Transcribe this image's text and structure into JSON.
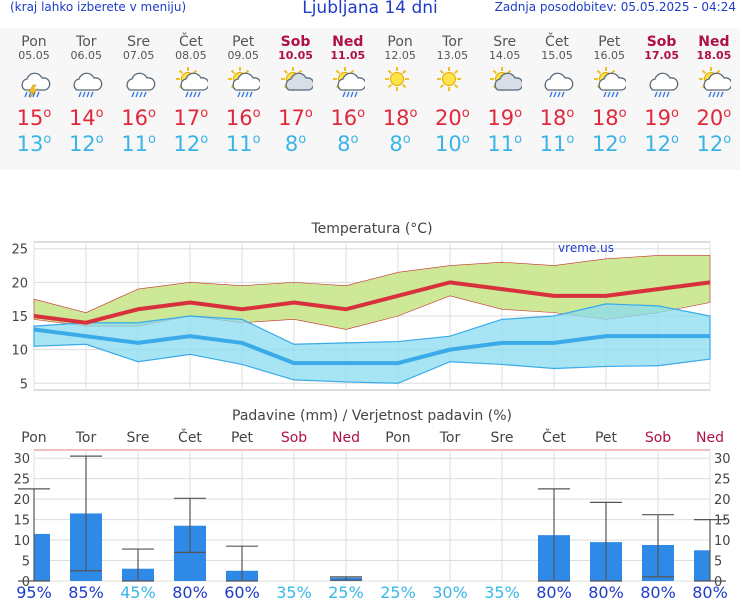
{
  "header": {
    "menu_hint": "(kraj lahko izberete v meniju)",
    "title": "Ljubljana 14 dni",
    "updated": "Zadnja posodobitev: 05.05.2025 - 04:24"
  },
  "days": [
    {
      "day": "Pon",
      "date": "05.05",
      "weekend": false,
      "icon": "thunder-rain-icon",
      "tmax": "15",
      "tmin": "13"
    },
    {
      "day": "Tor",
      "date": "06.05",
      "weekend": false,
      "icon": "cloud-rain-icon",
      "tmax": "14",
      "tmin": "12"
    },
    {
      "day": "Sre",
      "date": "07.05",
      "weekend": false,
      "icon": "cloud-rain-icon",
      "tmax": "16",
      "tmin": "11"
    },
    {
      "day": "Čet",
      "date": "08.05",
      "weekend": false,
      "icon": "sun-cloud-rain-icon",
      "tmax": "17",
      "tmin": "12"
    },
    {
      "day": "Pet",
      "date": "09.05",
      "weekend": false,
      "icon": "sun-cloud-rain-icon",
      "tmax": "16",
      "tmin": "11"
    },
    {
      "day": "Sob",
      "date": "10.05",
      "weekend": true,
      "icon": "sun-cloud-icon",
      "tmax": "17",
      "tmin": "8"
    },
    {
      "day": "Ned",
      "date": "11.05",
      "weekend": true,
      "icon": "sun-cloud-rain-icon",
      "tmax": "16",
      "tmin": "8"
    },
    {
      "day": "Pon",
      "date": "12.05",
      "weekend": false,
      "icon": "sun-icon",
      "tmax": "18",
      "tmin": "8"
    },
    {
      "day": "Tor",
      "date": "13.05",
      "weekend": false,
      "icon": "sun-icon",
      "tmax": "20",
      "tmin": "10"
    },
    {
      "day": "Sre",
      "date": "14.05",
      "weekend": false,
      "icon": "sun-cloud-icon",
      "tmax": "19",
      "tmin": "11"
    },
    {
      "day": "Čet",
      "date": "15.05",
      "weekend": false,
      "icon": "cloud-rain-icon",
      "tmax": "18",
      "tmin": "11"
    },
    {
      "day": "Pet",
      "date": "16.05",
      "weekend": false,
      "icon": "sun-cloud-rain-icon",
      "tmax": "18",
      "tmin": "12"
    },
    {
      "day": "Sob",
      "date": "17.05",
      "weekend": true,
      "icon": "cloud-rain-icon",
      "tmax": "19",
      "tmin": "12"
    },
    {
      "day": "Ned",
      "date": "18.05",
      "weekend": true,
      "icon": "sun-cloud-rain-icon",
      "tmax": "20",
      "tmin": "12"
    }
  ],
  "colors": {
    "max": "#d8303c",
    "min": "#3aaae8",
    "max_band": "#c8e68c",
    "min_band": "#8adcf0",
    "overlap": "#7ed08a",
    "precip": "#2e8ae6",
    "weekend": "#b0104a",
    "prob_high": "#1e3cc8",
    "prob_low": "#38b8e8"
  },
  "chart_data": [
    {
      "type": "line",
      "title": "Temperatura (°C)",
      "watermark": "vreme.us",
      "ylim": [
        4,
        26
      ],
      "yticks": [
        5,
        10,
        15,
        20,
        25
      ],
      "categories": [
        "05.05",
        "06.05",
        "07.05",
        "08.05",
        "09.05",
        "10.05",
        "11.05",
        "12.05",
        "13.05",
        "14.05",
        "15.05",
        "16.05",
        "17.05",
        "18.05"
      ],
      "series": [
        {
          "role": "max",
          "values": [
            15,
            14,
            16,
            17,
            16,
            17,
            16,
            18,
            20,
            19,
            18,
            18,
            19,
            20
          ]
        },
        {
          "role": "min",
          "values": [
            13,
            12,
            11,
            12,
            11,
            8,
            8,
            8,
            10,
            11,
            11,
            12,
            12,
            12
          ]
        },
        {
          "role": "max-range-high",
          "values": [
            17.5,
            15.5,
            19,
            20,
            19.5,
            20,
            19.5,
            21.5,
            22.5,
            23,
            22.5,
            23.5,
            24,
            24
          ]
        },
        {
          "role": "max-range-low",
          "values": [
            14.5,
            13.5,
            13.5,
            15,
            14,
            14.5,
            13,
            15,
            18,
            16,
            15.5,
            14.5,
            15.5,
            17
          ]
        },
        {
          "role": "min-range-high",
          "values": [
            13.5,
            14,
            14,
            15,
            14.5,
            10.8,
            11,
            11.2,
            12,
            14.5,
            15,
            16.8,
            16.5,
            15
          ]
        },
        {
          "role": "min-range-low",
          "values": [
            10.5,
            10.8,
            8.2,
            9.3,
            7.8,
            5.5,
            5.2,
            5,
            8.2,
            7.8,
            7.2,
            7.5,
            7.6,
            8.6
          ]
        }
      ]
    },
    {
      "type": "bar",
      "title": "Padavine (mm) / Verjetnost padavin (%)",
      "ylim": [
        0,
        32
      ],
      "yticks": [
        0,
        5,
        10,
        15,
        20,
        25,
        30
      ],
      "categories": [
        "Pon",
        "Tor",
        "Sre",
        "Čet",
        "Pet",
        "Sob",
        "Ned",
        "Pon",
        "Tor",
        "Sre",
        "Čet",
        "Pet",
        "Sob",
        "Ned"
      ],
      "weekend": [
        false,
        false,
        false,
        false,
        false,
        true,
        true,
        false,
        false,
        false,
        false,
        false,
        true,
        true
      ],
      "values": [
        11.5,
        16.5,
        3,
        13.5,
        2.5,
        0,
        0.8,
        0,
        0,
        0,
        11.2,
        9.5,
        8.8,
        7.5
      ],
      "range_low": [
        0,
        2.5,
        0,
        7,
        0,
        0,
        0.2,
        0,
        0,
        0,
        0,
        0,
        1,
        0
      ],
      "range_high": [
        22.5,
        30.5,
        7.8,
        20.2,
        8.5,
        0,
        1,
        0,
        0,
        0,
        22.5,
        19.2,
        16.2,
        15
      ],
      "probability": [
        "95%",
        "85%",
        "45%",
        "80%",
        "60%",
        "35%",
        "25%",
        "25%",
        "30%",
        "35%",
        "80%",
        "80%",
        "80%",
        "80%"
      ]
    }
  ]
}
